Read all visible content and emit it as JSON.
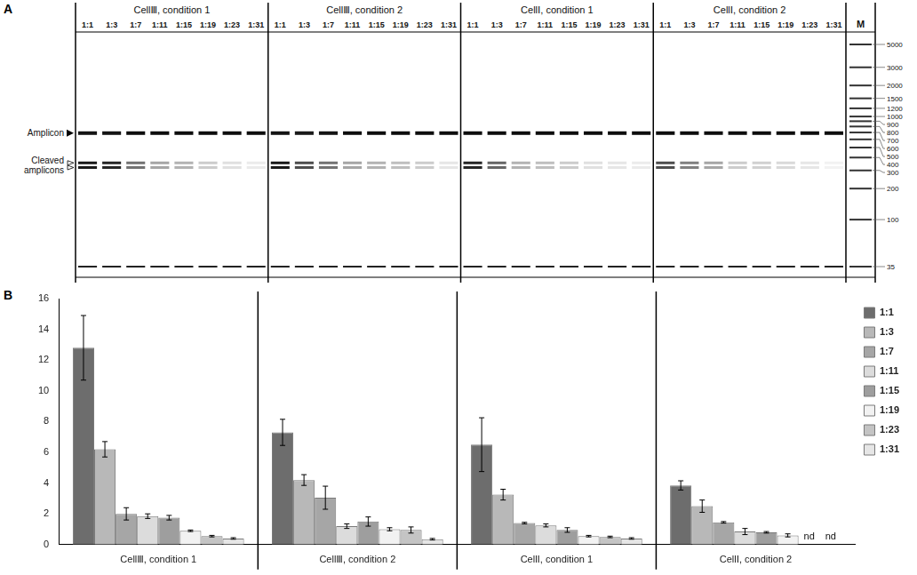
{
  "gel": {
    "panel": "A",
    "marker_label": "M",
    "amplicon_label": "Amplicon",
    "cleaved_label": "Cleaved amplicons",
    "ladder": [
      5000,
      3000,
      2000,
      1500,
      1200,
      1000,
      900,
      800,
      700,
      600,
      500,
      400,
      300,
      200,
      100,
      35
    ],
    "amplicon_size": 690,
    "cleaved_sizes": [
      355,
      320
    ],
    "lower_marker_size": 35,
    "lanes": [
      "1:1",
      "1:3",
      "1:7",
      "1:11",
      "1:15",
      "1:19",
      "1:23",
      "1:31"
    ],
    "panels": [
      {
        "title": "CellⅢ, condition 1",
        "amplicon_intensity": [
          0.92,
          0.92,
          0.95,
          0.95,
          0.95,
          0.95,
          0.95,
          0.95
        ],
        "cleaved_intensity": [
          0.9,
          0.85,
          0.55,
          0.35,
          0.3,
          0.2,
          0.12,
          0.08
        ]
      },
      {
        "title": "CellⅢ, condition 2",
        "amplicon_intensity": [
          0.92,
          0.9,
          0.92,
          0.95,
          0.95,
          0.95,
          0.95,
          0.95
        ],
        "cleaved_intensity": [
          0.9,
          0.7,
          0.55,
          0.35,
          0.3,
          0.25,
          0.2,
          0.1
        ]
      },
      {
        "title": "CellⅠ, condition 1",
        "amplicon_intensity": [
          0.95,
          0.95,
          0.95,
          0.95,
          0.95,
          0.95,
          0.95,
          0.95
        ],
        "cleaved_intensity": [
          0.85,
          0.6,
          0.3,
          0.25,
          0.2,
          0.12,
          0.1,
          0.08
        ]
      },
      {
        "title": "CellⅠ, condition 2",
        "amplicon_intensity": [
          0.95,
          0.95,
          0.95,
          0.95,
          0.95,
          0.95,
          0.95,
          0.95
        ],
        "cleaved_intensity": [
          0.7,
          0.5,
          0.35,
          0.2,
          0.18,
          0.15,
          0.1,
          0.05
        ]
      }
    ]
  },
  "chart_data": {
    "type": "bar",
    "panel": "B",
    "categories": [
      "CellⅢ, condition 1",
      "CellⅢ, condition 2",
      "CellⅠ, condition 1",
      "CellⅠ, condition 2"
    ],
    "series": [
      {
        "name": "1:1",
        "color": "#6d6d6d",
        "values": [
          12.8,
          7.3,
          6.5,
          3.85
        ],
        "errors": [
          2.1,
          0.85,
          1.75,
          0.3
        ]
      },
      {
        "name": "1:3",
        "color": "#b8b8b8",
        "values": [
          6.2,
          4.2,
          3.25,
          2.5
        ],
        "errors": [
          0.5,
          0.35,
          0.35,
          0.4
        ]
      },
      {
        "name": "1:7",
        "color": "#a6a6a6",
        "values": [
          2.0,
          3.05,
          1.4,
          1.45
        ],
        "errors": [
          0.4,
          0.75,
          0.05,
          0.05
        ]
      },
      {
        "name": "1:11",
        "color": "#dcdcdc",
        "values": [
          1.85,
          1.2,
          1.25,
          0.85
        ],
        "errors": [
          0.15,
          0.15,
          0.1,
          0.2
        ]
      },
      {
        "name": "1:15",
        "color": "#9e9e9e",
        "values": [
          1.75,
          1.5,
          0.95,
          0.8
        ],
        "errors": [
          0.15,
          0.3,
          0.15,
          0.05
        ]
      },
      {
        "name": "1:19",
        "color": "#f2f2f2",
        "values": [
          0.9,
          1.0,
          0.55,
          0.6
        ],
        "errors": [
          0.05,
          0.1,
          0.05,
          0.1
        ]
      },
      {
        "name": "1:23",
        "color": "#c4c4c4",
        "values": [
          0.55,
          0.95,
          0.5,
          null
        ],
        "errors": [
          0.05,
          0.2,
          0.05,
          null
        ]
      },
      {
        "name": "1:31",
        "color": "#e6e6e6",
        "values": [
          0.4,
          0.35,
          0.4,
          null
        ],
        "errors": [
          0.05,
          0.05,
          0.05,
          null
        ]
      }
    ],
    "annotations": [
      {
        "text": "nd",
        "category": "CellⅠ, condition 2",
        "series": "1:23"
      },
      {
        "text": "nd",
        "category": "CellⅠ, condition 2",
        "series": "1:31"
      }
    ],
    "ylim": [
      0,
      16
    ],
    "yticks": [
      0,
      2,
      4,
      6,
      8,
      10,
      12,
      14,
      16
    ],
    "grid": false,
    "legend": "right"
  }
}
